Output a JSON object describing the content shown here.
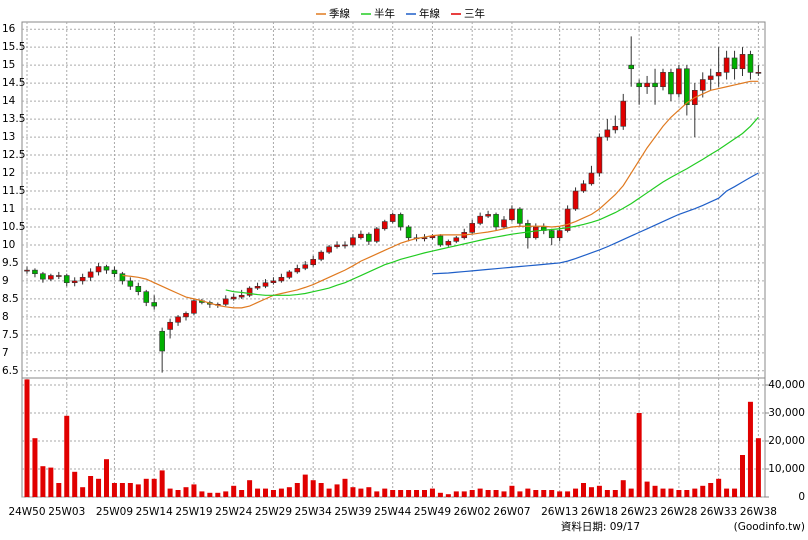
{
  "chart_data": {
    "type": "candlestick",
    "legend": "top",
    "grid": true,
    "categories": [
      "24W50",
      null,
      null,
      null,
      null,
      "25W03",
      null,
      null,
      null,
      null,
      null,
      "25W09",
      null,
      null,
      null,
      null,
      "25W14",
      null,
      null,
      null,
      null,
      "25W19",
      null,
      null,
      null,
      null,
      "25W24",
      null,
      null,
      null,
      null,
      "25W29",
      null,
      null,
      null,
      null,
      "25W34",
      null,
      null,
      null,
      null,
      "25W39",
      null,
      null,
      null,
      null,
      "25W44",
      null,
      null,
      null,
      null,
      "25W49",
      null,
      null,
      null,
      null,
      "26W02",
      null,
      null,
      null,
      null,
      "26W07",
      null,
      null,
      null,
      null,
      null,
      "26W13",
      null,
      null,
      null,
      null,
      "26W18",
      null,
      null,
      null,
      null,
      "26W23",
      null,
      null,
      null,
      null,
      "26W28",
      null,
      null,
      null,
      null,
      "26W33",
      null,
      null,
      null,
      null,
      "26W38"
    ],
    "up_color": "#e00000",
    "down_color": "#00b000",
    "open": [
      9.3,
      9.3,
      9.2,
      9.05,
      9.15,
      9.15,
      8.95,
      9.0,
      9.1,
      9.25,
      9.4,
      9.3,
      9.2,
      9.0,
      8.85,
      8.7,
      8.4,
      7.6,
      7.65,
      7.85,
      8.0,
      8.1,
      8.45,
      8.4,
      8.35,
      8.35,
      8.5,
      8.55,
      8.6,
      8.8,
      8.85,
      8.95,
      9.0,
      9.1,
      9.25,
      9.35,
      9.45,
      9.6,
      9.8,
      9.95,
      10.0,
      10.0,
      10.2,
      10.3,
      10.1,
      10.45,
      10.65,
      10.85,
      10.5,
      10.2,
      10.2,
      10.2,
      10.25,
      10.0,
      10.1,
      10.2,
      10.35,
      10.6,
      10.8,
      10.85,
      10.5,
      10.7,
      11.0,
      10.6,
      10.2,
      10.5,
      10.4,
      10.2,
      10.4,
      11.0,
      11.5,
      11.7,
      12.0,
      13.0,
      13.2,
      13.3,
      15.0,
      14.5,
      14.4,
      14.5,
      14.4,
      14.8,
      14.2,
      14.9,
      13.9,
      14.3,
      14.6,
      14.7,
      14.8,
      15.2,
      14.9,
      15.3,
      14.8
    ],
    "high": [
      9.4,
      9.35,
      9.25,
      9.2,
      9.25,
      9.2,
      9.1,
      9.2,
      9.35,
      9.5,
      9.45,
      9.4,
      9.25,
      9.1,
      8.95,
      8.75,
      8.6,
      7.7,
      7.95,
      8.05,
      8.15,
      8.5,
      8.5,
      8.45,
      8.4,
      8.6,
      8.65,
      8.75,
      8.85,
      8.95,
      9.05,
      9.1,
      9.2,
      9.3,
      9.45,
      9.55,
      9.7,
      9.85,
      10.0,
      10.1,
      10.1,
      10.3,
      10.4,
      10.35,
      10.5,
      10.7,
      10.9,
      10.9,
      10.55,
      10.3,
      10.3,
      10.3,
      10.3,
      10.15,
      10.25,
      10.45,
      10.7,
      10.9,
      10.95,
      10.9,
      10.8,
      11.1,
      11.05,
      10.7,
      10.6,
      10.6,
      10.45,
      10.5,
      11.1,
      11.6,
      11.8,
      12.2,
      13.1,
      13.5,
      13.6,
      14.2,
      15.8,
      14.6,
      14.7,
      14.9,
      14.9,
      14.9,
      15.0,
      15.0,
      14.5,
      14.8,
      14.9,
      15.5,
      15.4,
      15.4,
      15.5,
      15.4,
      15.0
    ],
    "low": [
      9.2,
      9.1,
      8.95,
      9.0,
      9.05,
      8.85,
      8.85,
      8.9,
      9.0,
      9.15,
      9.2,
      9.1,
      8.9,
      8.75,
      8.6,
      8.3,
      8.2,
      6.45,
      7.4,
      7.75,
      7.9,
      8.05,
      8.35,
      8.25,
      8.25,
      8.3,
      8.45,
      8.5,
      8.55,
      8.75,
      8.8,
      8.9,
      8.95,
      9.05,
      9.2,
      9.3,
      9.4,
      9.55,
      9.75,
      9.9,
      9.9,
      9.95,
      10.15,
      10.0,
      10.05,
      10.4,
      10.6,
      10.4,
      10.1,
      10.1,
      10.1,
      10.15,
      9.95,
      9.95,
      10.05,
      10.15,
      10.3,
      10.55,
      10.75,
      10.4,
      10.45,
      10.65,
      10.5,
      9.9,
      10.15,
      10.3,
      10.0,
      10.1,
      10.35,
      10.95,
      11.45,
      11.65,
      11.9,
      12.9,
      13.1,
      13.2,
      14.4,
      13.9,
      14.2,
      13.9,
      14.3,
      14.0,
      14.1,
      13.6,
      13.0,
      14.1,
      14.3,
      14.4,
      14.6,
      14.6,
      14.7,
      14.6,
      14.7
    ],
    "close": [
      9.3,
      9.2,
      9.05,
      9.15,
      9.15,
      8.95,
      9.0,
      9.1,
      9.25,
      9.4,
      9.3,
      9.2,
      9.0,
      8.85,
      8.7,
      8.4,
      8.3,
      7.05,
      7.85,
      8.0,
      8.1,
      8.45,
      8.4,
      8.35,
      8.35,
      8.5,
      8.55,
      8.6,
      8.8,
      8.85,
      8.95,
      9.0,
      9.1,
      9.25,
      9.35,
      9.45,
      9.6,
      9.8,
      9.95,
      10.0,
      10.0,
      10.2,
      10.3,
      10.1,
      10.45,
      10.65,
      10.85,
      10.5,
      10.2,
      10.2,
      10.2,
      10.25,
      10.0,
      10.1,
      10.2,
      10.35,
      10.6,
      10.8,
      10.85,
      10.5,
      10.7,
      11.0,
      10.6,
      10.2,
      10.5,
      10.4,
      10.2,
      10.4,
      11.0,
      11.5,
      11.7,
      12.0,
      13.0,
      13.2,
      13.3,
      14.0,
      14.9,
      14.4,
      14.5,
      14.4,
      14.8,
      14.2,
      14.9,
      13.9,
      14.3,
      14.6,
      14.7,
      14.8,
      15.2,
      14.9,
      15.3,
      14.8,
      14.8
    ],
    "ylim": [
      6.3,
      16.2
    ],
    "yticks": [
      6.5,
      7,
      7.5,
      8,
      8.5,
      9,
      9.5,
      10,
      10.5,
      11,
      11.5,
      12,
      12.5,
      13,
      13.5,
      14,
      14.5,
      15,
      15.5,
      16
    ],
    "series": [
      {
        "name": "季線",
        "color": "#e07a20",
        "values": [
          null,
          null,
          null,
          null,
          null,
          null,
          null,
          null,
          null,
          null,
          null,
          null,
          9.15,
          9.13,
          9.1,
          9.05,
          8.95,
          8.85,
          8.75,
          8.65,
          8.55,
          8.5,
          8.45,
          8.38,
          8.32,
          8.28,
          8.25,
          8.25,
          8.3,
          8.4,
          8.5,
          8.6,
          8.65,
          8.7,
          8.75,
          8.82,
          8.9,
          9.0,
          9.1,
          9.2,
          9.3,
          9.42,
          9.55,
          9.65,
          9.75,
          9.85,
          9.95,
          10.05,
          10.12,
          10.18,
          10.22,
          10.26,
          10.28,
          10.28,
          10.28,
          10.28,
          10.3,
          10.33,
          10.36,
          10.4,
          10.45,
          10.5,
          10.52,
          10.52,
          10.52,
          10.52,
          10.5,
          10.52,
          10.57,
          10.65,
          10.75,
          10.85,
          11.0,
          11.2,
          11.4,
          11.65,
          12.0,
          12.35,
          12.7,
          13.0,
          13.3,
          13.55,
          13.75,
          13.95,
          14.1,
          14.2,
          14.3,
          14.35,
          14.4,
          14.45,
          14.5,
          14.55,
          14.55
        ]
      },
      {
        "name": "半年",
        "color": "#22cc22",
        "values": [
          null,
          null,
          null,
          null,
          null,
          null,
          null,
          null,
          null,
          null,
          null,
          null,
          null,
          null,
          null,
          null,
          null,
          null,
          null,
          null,
          null,
          null,
          null,
          null,
          null,
          8.75,
          8.7,
          8.68,
          8.65,
          8.62,
          8.6,
          8.6,
          8.6,
          8.6,
          8.62,
          8.65,
          8.7,
          8.75,
          8.8,
          8.88,
          8.95,
          9.05,
          9.15,
          9.25,
          9.35,
          9.45,
          9.52,
          9.6,
          9.66,
          9.72,
          9.78,
          9.83,
          9.88,
          9.93,
          9.98,
          10.03,
          10.08,
          10.13,
          10.18,
          10.22,
          10.26,
          10.3,
          10.33,
          10.36,
          10.39,
          10.41,
          10.43,
          10.45,
          10.48,
          10.52,
          10.57,
          10.63,
          10.7,
          10.8,
          10.9,
          11.02,
          11.15,
          11.3,
          11.45,
          11.6,
          11.75,
          11.88,
          12.0,
          12.12,
          12.25,
          12.38,
          12.52,
          12.65,
          12.8,
          12.95,
          13.1,
          13.3,
          13.55
        ]
      },
      {
        "name": "年線",
        "color": "#1f5fc8",
        "values": [
          null,
          null,
          null,
          null,
          null,
          null,
          null,
          null,
          null,
          null,
          null,
          null,
          null,
          null,
          null,
          null,
          null,
          null,
          null,
          null,
          null,
          null,
          null,
          null,
          null,
          null,
          null,
          null,
          null,
          null,
          null,
          null,
          null,
          null,
          null,
          null,
          null,
          null,
          null,
          null,
          null,
          null,
          null,
          null,
          null,
          null,
          null,
          null,
          null,
          null,
          null,
          9.2,
          9.21,
          9.22,
          9.24,
          9.26,
          9.28,
          9.3,
          9.32,
          9.34,
          9.36,
          9.38,
          9.4,
          9.42,
          9.44,
          9.46,
          9.48,
          9.5,
          9.55,
          9.62,
          9.7,
          9.78,
          9.86,
          9.95,
          10.05,
          10.15,
          10.25,
          10.35,
          10.45,
          10.55,
          10.65,
          10.75,
          10.85,
          10.93,
          11.01,
          11.1,
          11.2,
          11.3,
          11.5,
          11.62,
          11.75,
          11.88,
          12.0
        ]
      },
      {
        "name": "三年",
        "color": "#e00000"
      }
    ],
    "volume": {
      "color": "#e00000",
      "ylim": [
        0,
        42500
      ],
      "yticks": [
        0,
        {
          "value": 10000,
          "label": "10,000"
        },
        {
          "value": 20000,
          "label": "20,000"
        },
        {
          "value": 30000,
          "label": "30,000"
        },
        {
          "value": 40000,
          "label": "40,000"
        }
      ],
      "values": [
        42000,
        21000,
        11000,
        10500,
        5000,
        29000,
        9000,
        3500,
        7500,
        6500,
        13500,
        5000,
        5000,
        5000,
        4500,
        6500,
        6500,
        9500,
        3000,
        2500,
        3500,
        4500,
        2000,
        1500,
        1500,
        2000,
        4000,
        2500,
        6000,
        3000,
        3000,
        2500,
        3000,
        3500,
        5000,
        8000,
        6000,
        5000,
        3000,
        4500,
        6500,
        3500,
        3000,
        3500,
        2000,
        3000,
        2500,
        2500,
        2500,
        2500,
        2500,
        3000,
        1500,
        1000,
        2000,
        2000,
        2500,
        3000,
        2500,
        2500,
        2000,
        4000,
        2000,
        3000,
        2500,
        2500,
        2500,
        2000,
        2000,
        3000,
        5000,
        3500,
        4000,
        2500,
        2500,
        6000,
        3000,
        30000,
        5500,
        4000,
        3000,
        3000,
        2500,
        2500,
        3000,
        4000,
        5000,
        6500,
        3000,
        3000,
        15000,
        34000,
        21000
      ]
    },
    "footer": "資料日期: 09/17",
    "source": "(Goodinfo.tw)"
  }
}
